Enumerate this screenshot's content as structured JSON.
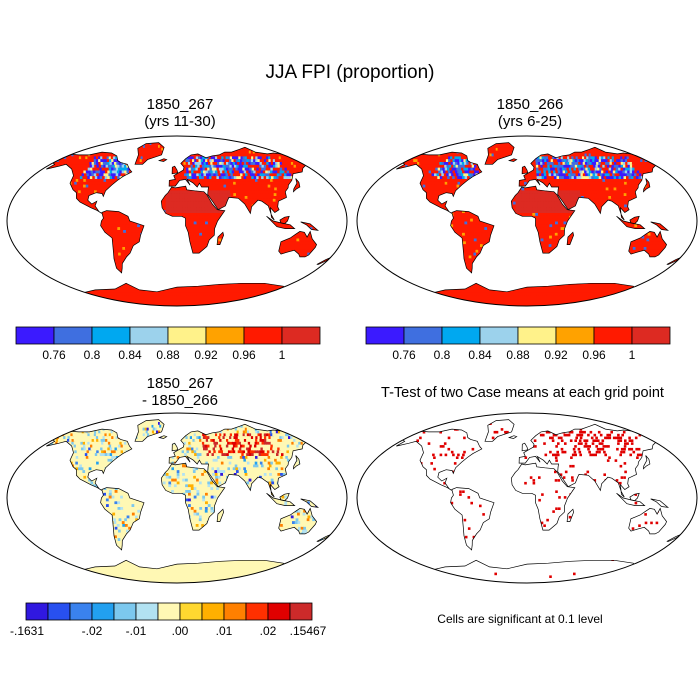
{
  "page": {
    "title": "JJA FPI (proportion)"
  },
  "panels": [
    {
      "id": "panel-1850-267",
      "title": "1850_267\n(yrs 11-30)",
      "palette": "fpi",
      "colorbar_labels": [
        "0.76",
        "0.8",
        "0.84",
        "0.88",
        "0.92",
        "0.96",
        "1"
      ]
    },
    {
      "id": "panel-1850-266",
      "title": "1850_266\n(yrs 6-25)",
      "palette": "fpi",
      "colorbar_labels": [
        "0.76",
        "0.8",
        "0.84",
        "0.88",
        "0.92",
        "0.96",
        "1"
      ]
    },
    {
      "id": "panel-difference",
      "title": "1850_267\n- 1850_266",
      "palette": "diff",
      "colorbar_labels": [
        "-.1631",
        "-.02",
        "-.01",
        ".00",
        ".01",
        ".02",
        ".15467"
      ]
    },
    {
      "id": "panel-ttest",
      "title": "T-Test of two Case means at each grid point",
      "palette": "significance",
      "note": "Cells are significant at 0.1 level"
    }
  ],
  "palettes": {
    "fpi": [
      "#3b1aff",
      "#3f6fe0",
      "#00a8f0",
      "#9cd2ec",
      "#fff28a",
      "#ffa200",
      "#ff1a00",
      "#dd2a22"
    ],
    "diff": [
      "#3018e0",
      "#2850f0",
      "#3a82ee",
      "#22a0f0",
      "#7cc8ee",
      "#b2e2f2",
      "#fff8b4",
      "#ffd830",
      "#ffb000",
      "#ff8000",
      "#ff3000",
      "#e00000",
      "#cc2a2a"
    ],
    "significance": [
      "#e00000"
    ],
    "ocean": "#ffffff",
    "coast": "#000000"
  }
}
